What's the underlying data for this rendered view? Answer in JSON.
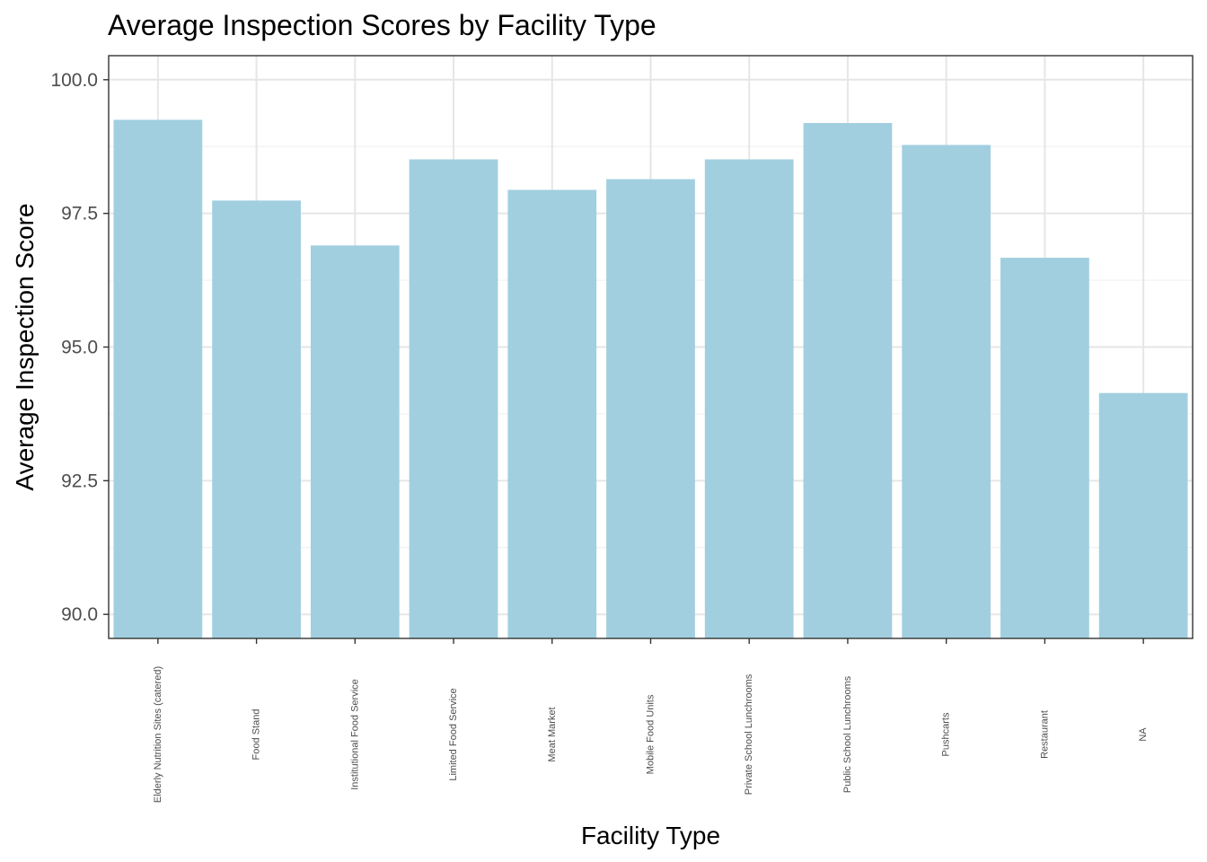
{
  "chart_data": {
    "type": "bar",
    "title": "Average Inspection Scores by Facility Type",
    "xlabel": "Facility Type",
    "ylabel": "Average Inspection Score",
    "categories": [
      "Elderly Nutrition Sites (catered)",
      "Food Stand",
      "Institutional Food Service",
      "Limited Food Service",
      "Meat Market",
      "Mobile Food Units",
      "Private School Lunchrooms",
      "Public School Lunchrooms",
      "Pushcarts",
      "Restaurant",
      "NA"
    ],
    "values": [
      99.25,
      97.74,
      96.9,
      98.51,
      97.94,
      98.14,
      98.51,
      99.19,
      98.78,
      96.67,
      94.14
    ],
    "ylim": [
      89.55,
      100.45
    ],
    "yticks": [
      90.0,
      92.5,
      95.0,
      97.5,
      100.0
    ],
    "ytick_labels": [
      "90.0",
      "92.5",
      "95.0",
      "97.5",
      "100.0"
    ],
    "bar_color": "#a1cfe0",
    "grid": true,
    "theme": "bw"
  }
}
